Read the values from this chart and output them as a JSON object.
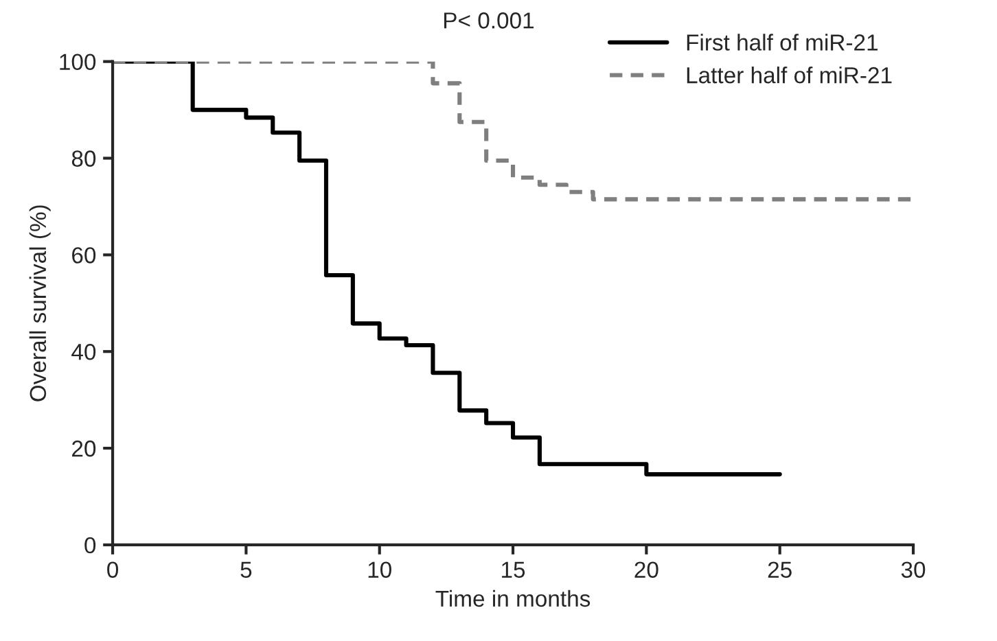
{
  "chart_data": {
    "type": "step",
    "xlabel": "Time in months",
    "ylabel": "Overall survival (%)",
    "annotations": [
      "P< 0.001"
    ],
    "series": [
      {
        "name": "First half of miR-21",
        "color": "#000000",
        "line_style": "solid",
        "x": [
          0,
          3,
          5,
          6,
          7,
          8,
          9,
          10,
          11,
          12,
          13,
          14,
          15,
          16,
          20,
          25
        ],
        "values": [
          100,
          90,
          88.4,
          85.3,
          79.5,
          55.8,
          45.8,
          42.7,
          41.3,
          35.6,
          27.8,
          25.2,
          22.2,
          16.7,
          14.6,
          14.6
        ]
      },
      {
        "name": "Latter half of miR-21",
        "color": "#7f7f7f",
        "line_style": "dashed",
        "x": [
          0,
          12,
          13,
          14,
          15,
          16,
          17,
          18,
          30
        ],
        "values": [
          100,
          95.5,
          87.5,
          79.5,
          76,
          74.5,
          73,
          71.5,
          71.5
        ]
      }
    ],
    "xlim": [
      0,
      30
    ],
    "xticks": [
      0,
      5,
      10,
      15,
      20,
      25,
      30
    ],
    "ylim": [
      0,
      100
    ],
    "yticks": [
      0,
      20,
      40,
      60,
      80,
      100
    ],
    "grid": false,
    "legend": "top right"
  }
}
